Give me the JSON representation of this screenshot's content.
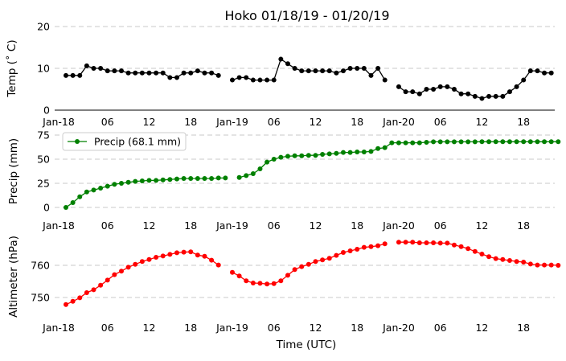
{
  "chart_data": {
    "type": "line",
    "title": "Hoko 01/18/19 - 01/20/19",
    "xlabel": "Time (UTC)",
    "x_hours": [
      0,
      1,
      2,
      3,
      4,
      5,
      6,
      7,
      8,
      9,
      10,
      11,
      12,
      13,
      14,
      15,
      16,
      17,
      18,
      19,
      20,
      21,
      22,
      23,
      24,
      25,
      26,
      27,
      28,
      29,
      30,
      31,
      32,
      33,
      34,
      35,
      36,
      37,
      38,
      39,
      40,
      41,
      42,
      43,
      44,
      45,
      46,
      47,
      48,
      49,
      50,
      51,
      52,
      53,
      54,
      55,
      56,
      57,
      58,
      59,
      60,
      61,
      62,
      63,
      64,
      65,
      66,
      67,
      68,
      69,
      70,
      71
    ],
    "x_range": [
      0,
      70.5
    ],
    "x_tick_hours": [
      0,
      6,
      12,
      18,
      24,
      30,
      36,
      42,
      48,
      54,
      60,
      66
    ],
    "x_tick_labels": [
      "Jan-18",
      "06",
      "12",
      "18",
      "Jan-19",
      "06",
      "12",
      "18",
      "Jan-20",
      "06",
      "12",
      "18"
    ],
    "panels": [
      {
        "ylabel": "Temp ($^\\circ$C)",
        "ylabel_display": "Temp (˚ C)",
        "ylim": [
          0,
          20
        ],
        "yticks": [
          0,
          10,
          20
        ],
        "grid": true,
        "color": "#000000",
        "series": [
          {
            "name": "Temp",
            "values": [
              8.3,
              8.3,
              8.3,
              10.6,
              10.0,
              10.0,
              9.4,
              9.4,
              9.4,
              8.9,
              8.9,
              8.9,
              8.9,
              8.9,
              8.9,
              7.8,
              7.8,
              8.9,
              8.9,
              9.4,
              8.9,
              8.9,
              8.3,
              null,
              7.2,
              7.8,
              7.8,
              7.2,
              7.2,
              7.2,
              7.2,
              12.2,
              11.1,
              10.0,
              9.4,
              9.4,
              9.4,
              9.4,
              9.4,
              8.9,
              9.4,
              10.0,
              10.0,
              10.0,
              8.3,
              10.0,
              7.2,
              null,
              5.6,
              4.4,
              4.4,
              3.9,
              5.0,
              5.0,
              5.6,
              5.6,
              5.0,
              3.9,
              3.9,
              3.3,
              2.8,
              3.3,
              3.3,
              3.3,
              4.4,
              5.6,
              7.2,
              9.4,
              9.4,
              8.9,
              8.9,
              null
            ]
          }
        ]
      },
      {
        "ylabel": "Precip (mm)",
        "ylim": [
          0,
          75
        ],
        "yticks": [
          0,
          25,
          50,
          75
        ],
        "grid": true,
        "color": "#008000",
        "legend": {
          "label": "Precip (68.1 mm)",
          "position": "upper left"
        },
        "series": [
          {
            "name": "Precip (68.1 mm)",
            "values": [
              0,
              5,
              11,
              16,
              18,
              20,
              22,
              24,
              25,
              26,
              27,
              27.5,
              28,
              28,
              28.5,
              29,
              29.5,
              30,
              30,
              30,
              30,
              30,
              30.5,
              30.5,
              null,
              31,
              33,
              35,
              40,
              47,
              50,
              52,
              53,
              53.5,
              53.5,
              54,
              54,
              55,
              55.5,
              56,
              57,
              57,
              57.5,
              57.5,
              58,
              61,
              62,
              67,
              67,
              67,
              67,
              67,
              67.5,
              68,
              68,
              68,
              68,
              68,
              68,
              68,
              68.1,
              68.1,
              68.1,
              68.1,
              68.1,
              68.1,
              68.1,
              68.1,
              68.1,
              68.1,
              68.1,
              68.1
            ]
          }
        ]
      },
      {
        "ylabel": "Altimeter (hPa)",
        "ylim": [
          745,
          768
        ],
        "yticks": [
          750,
          760
        ],
        "grid": true,
        "color": "#ff0000",
        "series": [
          {
            "name": "Altimeter",
            "values": [
              747.8,
              748.8,
              749.9,
              751.5,
              752.4,
              753.8,
              755.4,
              757.1,
              758.2,
              759.4,
              760.3,
              761.2,
              761.8,
              762.5,
              762.9,
              763.4,
              763.9,
              764.1,
              764.2,
              763.2,
              762.8,
              761.6,
              760.1,
              null,
              757.8,
              756.7,
              755.2,
              754.5,
              754.4,
              754.2,
              754.3,
              755.2,
              756.9,
              758.7,
              759.6,
              760.3,
              761.2,
              761.7,
              762.2,
              763.1,
              764.0,
              764.5,
              765.0,
              765.6,
              765.8,
              766.1,
              766.7,
              null,
              767.2,
              767.2,
              767.2,
              767.0,
              767.0,
              767.0,
              766.9,
              766.9,
              766.3,
              765.8,
              765.2,
              764.3,
              763.5,
              762.7,
              762.1,
              761.8,
              761.5,
              761.2,
              761.0,
              760.4,
              760.1,
              760.1,
              760.1,
              760.0
            ]
          }
        ]
      }
    ]
  }
}
